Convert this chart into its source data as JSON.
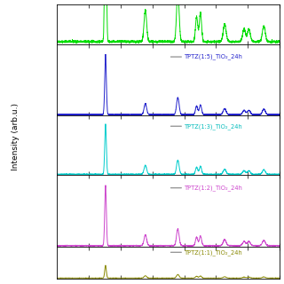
{
  "ylabel": "Intensity (arb.u.)",
  "background_color": "#ffffff",
  "panels": [
    {
      "label": "",
      "color": "#00dd00",
      "label_color": "#00dd00",
      "clip_top": true,
      "scale": 1.0
    },
    {
      "label": "TPTZ(1:5)_TiO₂_24h",
      "color": "#2222cc",
      "label_color": "#2222cc",
      "clip_top": false,
      "scale": 1.0
    },
    {
      "label": "TPTZ(1:3)_TiO₂_24h",
      "color": "#00cccc",
      "label_color": "#00bbbb",
      "clip_top": false,
      "scale": 0.85
    },
    {
      "label": "TPTZ(1:2)_TiO₂_24h",
      "color": "#cc44cc",
      "label_color": "#cc44cc",
      "clip_top": false,
      "scale": 0.9
    },
    {
      "label": "TPTZ(1:1)_TiO₂_24h",
      "color": "#888800",
      "label_color": "#888800",
      "clip_top": false,
      "scale": 0.08
    }
  ],
  "xmin": 10,
  "xmax": 80,
  "peak_positions": [
    25.3,
    37.8,
    48.0,
    53.9,
    55.1,
    62.7,
    68.8,
    70.3,
    75.0
  ],
  "peak_heights": [
    1.0,
    0.18,
    0.28,
    0.14,
    0.16,
    0.1,
    0.07,
    0.07,
    0.09
  ],
  "peak_widths": [
    0.25,
    0.4,
    0.4,
    0.35,
    0.35,
    0.45,
    0.45,
    0.45,
    0.45
  ],
  "baseline": 0.01,
  "noise_amp": 0.003
}
